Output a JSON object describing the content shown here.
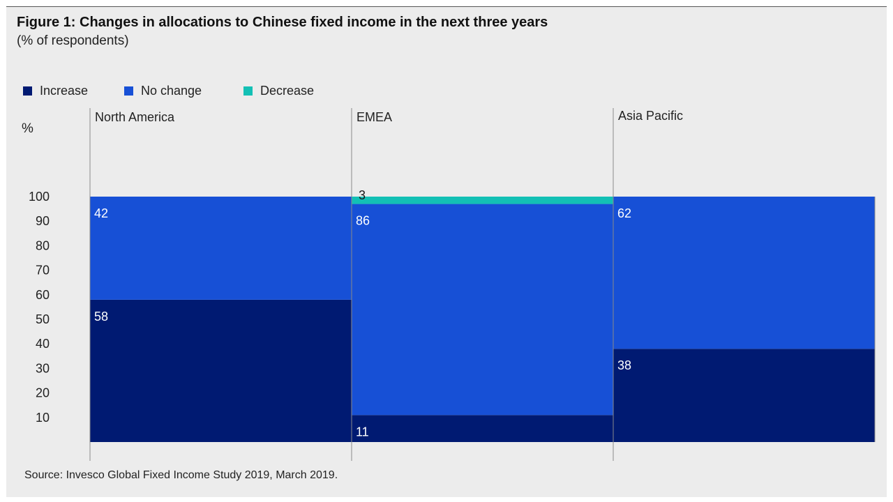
{
  "figure": {
    "title": "Figure 1: Changes in allocations to Chinese fixed income in the next three years",
    "subtitle": "(% of respondents)",
    "source": "Source: Invesco Global Fixed Income Study 2019, March 2019."
  },
  "chart_data": {
    "type": "bar",
    "stacked": true,
    "title": "Figure 1: Changes in allocations to Chinese fixed income in the next three years",
    "subtitle": "(% of respondents)",
    "ylabel": "%",
    "ylim": [
      0,
      100
    ],
    "yticks": [
      10,
      20,
      30,
      40,
      50,
      60,
      70,
      80,
      90,
      100
    ],
    "categories": [
      "North America",
      "EMEA",
      "Asia Pacific"
    ],
    "series": [
      {
        "name": "Increase",
        "color": "#001a72",
        "values": [
          58,
          11,
          38
        ]
      },
      {
        "name": "No change",
        "color": "#1750d6",
        "values": [
          42,
          86,
          62
        ]
      },
      {
        "name": "Decrease",
        "color": "#13c0b5",
        "values": [
          0,
          3,
          0
        ]
      }
    ],
    "data_labels": [
      [
        "58",
        "11",
        "38"
      ],
      [
        "42",
        "86",
        "62"
      ],
      [
        "",
        "3",
        ""
      ]
    ],
    "legend_position": "top-left",
    "grid": false
  }
}
